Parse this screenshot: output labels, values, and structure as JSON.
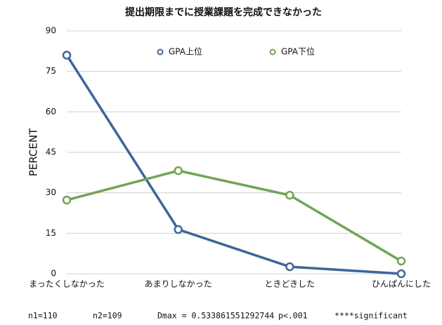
{
  "chart_data": {
    "type": "line",
    "title": "提出期限までに授業課題を完成できなかった",
    "y_label": "PERCENT",
    "categories": [
      "まったくしなかった",
      "あまりしなかった",
      "ときどきした",
      "ひんぱんにした"
    ],
    "series": [
      {
        "name": "GPA上位",
        "color": "#3d6699",
        "values": [
          81,
          16.4,
          2.6,
          0
        ]
      },
      {
        "name": "GPA下位",
        "color": "#72a553",
        "values": [
          27.3,
          38.2,
          29.1,
          4.7
        ]
      }
    ],
    "ylim": [
      0,
      90
    ],
    "yticks": [
      0,
      15,
      30,
      45,
      60,
      75,
      90
    ],
    "grid": true,
    "footnote": [
      "n1=110",
      "n2=109",
      "Dmax = 0.533861551292744",
      "p<.001",
      "****significant"
    ]
  }
}
